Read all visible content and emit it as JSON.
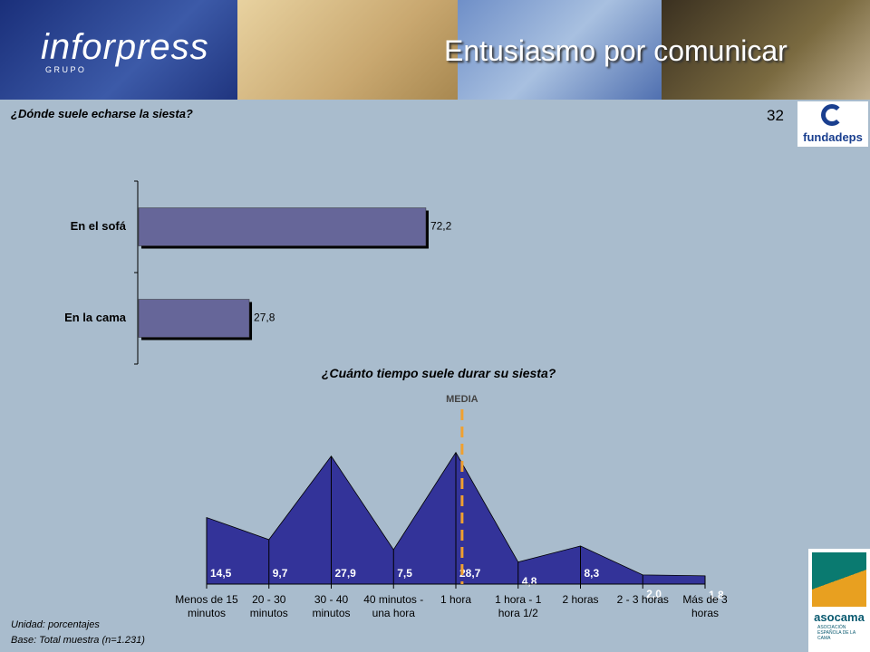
{
  "header": {
    "brand": "inforpress",
    "brand_sub": "G R U P O",
    "title": "Entusiasmo por comunicar",
    "page_number": "32"
  },
  "logos": {
    "fundadeps": "fundadeps",
    "asocama": "asocama",
    "asocama_sub": "ASOCIACIÓN ESPAÑOLA DE LA CAMA"
  },
  "footer": {
    "unit": "Unidad: porcentajes",
    "base": "Base: Total muestra (n=1.231)"
  },
  "chart_data": [
    {
      "type": "hbar",
      "title": "¿Dónde suele echarse la siesta?",
      "categories": [
        "En el sofá",
        "En la cama"
      ],
      "values": [
        72.2,
        27.8
      ],
      "value_labels": [
        "72,2",
        "27,8"
      ],
      "color": "#666699",
      "xlim": [
        0,
        100
      ]
    },
    {
      "type": "area",
      "title": "¿Cuánto tiempo suele durar su siesta?",
      "categories": [
        "Menos de 15 minutos",
        "20 - 30 minutos",
        "30 - 40 minutos",
        "40 minutos - una hora",
        "1 hora",
        "1 hora - 1 hora 1/2",
        "2 horas",
        "2 - 3 horas",
        "Más de 3 horas"
      ],
      "values": [
        14.5,
        9.7,
        27.9,
        7.5,
        28.7,
        4.8,
        8.3,
        2.0,
        1.8
      ],
      "value_labels": [
        "14,5",
        "9,7",
        "27,9",
        "7,5",
        "28,7",
        "4,8",
        "8,3",
        "2,0",
        "1,8"
      ],
      "color": "#333399",
      "ylim": [
        0,
        30
      ],
      "annotation": {
        "label": "MEDIA",
        "x": 4.1,
        "color": "#f0a030"
      }
    }
  ]
}
